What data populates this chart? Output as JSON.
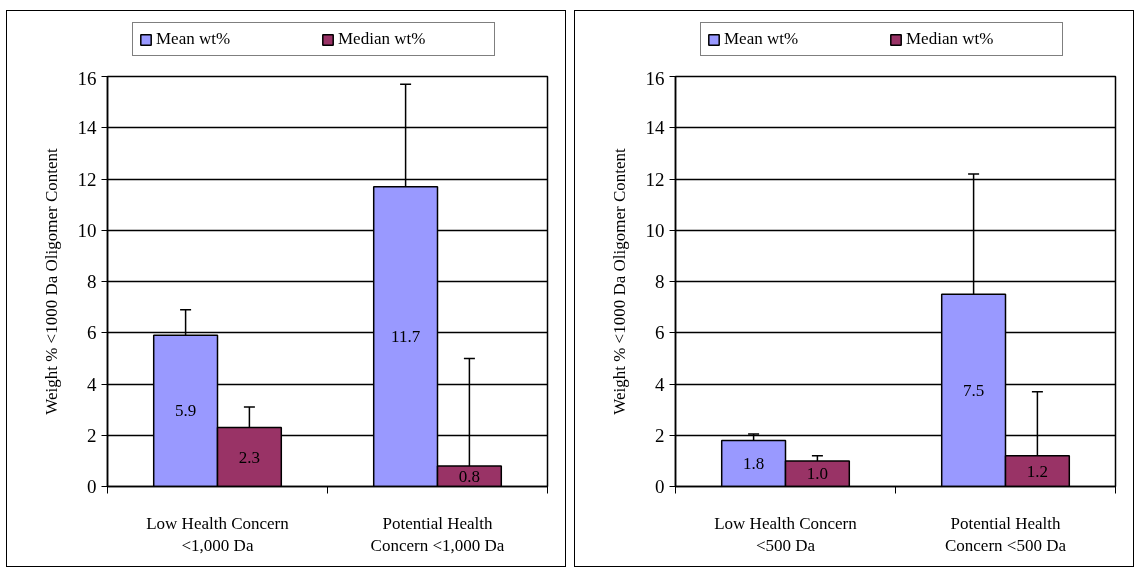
{
  "chart_data": [
    {
      "type": "bar",
      "categories": [
        "Low Health Concern <1,000 Da",
        "Potential Health Concern <1,000 Da"
      ],
      "series": [
        {
          "name": "Mean wt%",
          "color": "#9999ff",
          "values": [
            5.9,
            11.7
          ],
          "value_labels": [
            "5.9",
            "11.7"
          ],
          "errors": [
            [
              5.9,
              6.9
            ],
            [
              11.7,
              15.7
            ]
          ]
        },
        {
          "name": "Median wt%",
          "color": "#993366",
          "values": [
            2.3,
            0.8
          ],
          "value_labels": [
            "2.3",
            "0.8"
          ],
          "errors": [
            [
              2.3,
              3.1
            ],
            [
              0.8,
              5.0
            ]
          ]
        }
      ],
      "ylabel": "Weight % <1000 Da Oligomer Content",
      "ylim": [
        0,
        16
      ],
      "yticks": [
        0,
        2,
        4,
        6,
        8,
        10,
        12,
        14,
        16
      ],
      "grid": "y",
      "legend": "top",
      "data_labels": true
    },
    {
      "type": "bar",
      "categories": [
        "Low Health Concern <500 Da",
        "Potential Health Concern <500 Da"
      ],
      "series": [
        {
          "name": "Mean wt%",
          "color": "#9999ff",
          "values": [
            1.8,
            7.5
          ],
          "value_labels": [
            "1.8",
            "7.5"
          ],
          "errors": [
            [
              1.8,
              2.05
            ],
            [
              7.5,
              12.2
            ]
          ]
        },
        {
          "name": "Median wt%",
          "color": "#993366",
          "values": [
            1.0,
            1.2
          ],
          "value_labels": [
            "1.0",
            "1.2"
          ],
          "errors": [
            [
              1.0,
              1.2
            ],
            [
              1.2,
              3.7
            ]
          ]
        }
      ],
      "ylabel": "Weight % <1000 Da Oligomer Content",
      "ylim": [
        0,
        16
      ],
      "yticks": [
        0,
        2,
        4,
        6,
        8,
        10,
        12,
        14,
        16
      ],
      "grid": "y",
      "legend": "top",
      "data_labels": true
    }
  ]
}
